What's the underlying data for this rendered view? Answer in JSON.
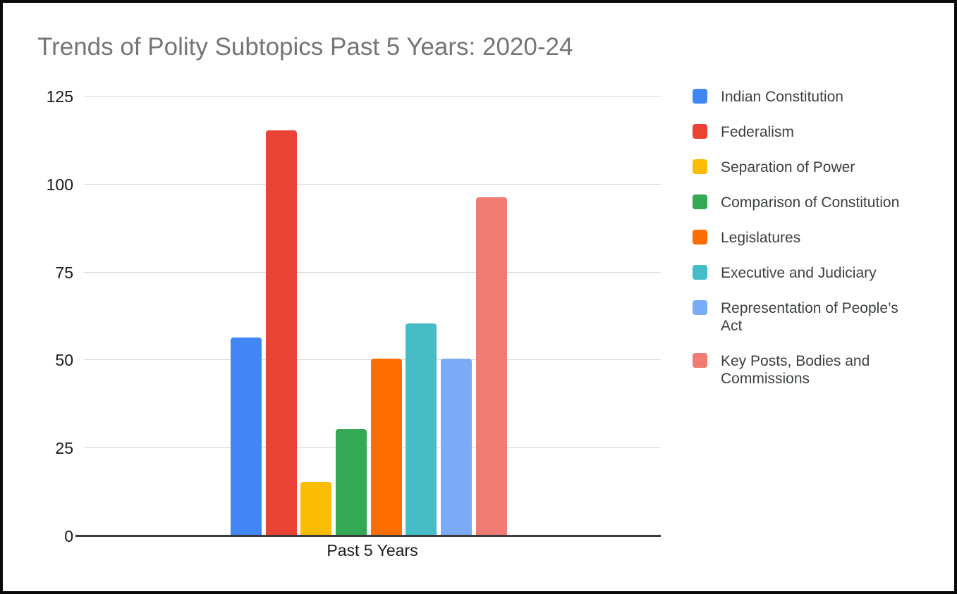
{
  "chart": {
    "title": "Trends of Polity Subtopics Past 5 Years: 2020-24",
    "title_color": "#757575",
    "xlabel": "Past 5 Years",
    "background": "#ffffff",
    "frame_border_color": "#0a0a0a",
    "gridline_color": "#d6d6d6",
    "axis_line_color": "#3a3a3a"
  },
  "chart_data": {
    "type": "bar",
    "title": "Trends of Polity Subtopics Past 5 Years: 2020-24",
    "categories": [
      "Past 5 Years"
    ],
    "series": [
      {
        "name": "Indian Constitution",
        "color": "#4285F4",
        "values": [
          56
        ]
      },
      {
        "name": "Federalism",
        "color": "#EA4335",
        "values": [
          115
        ]
      },
      {
        "name": "Separation of Power",
        "color": "#FBBC04",
        "values": [
          15
        ]
      },
      {
        "name": "Comparison of Constitution",
        "color": "#34A853",
        "values": [
          30
        ]
      },
      {
        "name": "Legislatures",
        "color": "#FF6D01",
        "values": [
          50
        ]
      },
      {
        "name": "Executive and Judiciary",
        "color": "#46BDC6",
        "values": [
          60
        ]
      },
      {
        "name": "Representation of People’s Act",
        "color": "#7BAAF7",
        "values": [
          50
        ]
      },
      {
        "name": "Key Posts, Bodies and Commissions",
        "color": "#F07B72",
        "values": [
          96
        ]
      }
    ],
    "xlabel": "Past 5 Years",
    "ylabel": "",
    "ylim": [
      0,
      125
    ],
    "yticks": [
      0,
      25,
      50,
      75,
      100,
      125
    ],
    "grid": true,
    "legend_position": "right"
  }
}
